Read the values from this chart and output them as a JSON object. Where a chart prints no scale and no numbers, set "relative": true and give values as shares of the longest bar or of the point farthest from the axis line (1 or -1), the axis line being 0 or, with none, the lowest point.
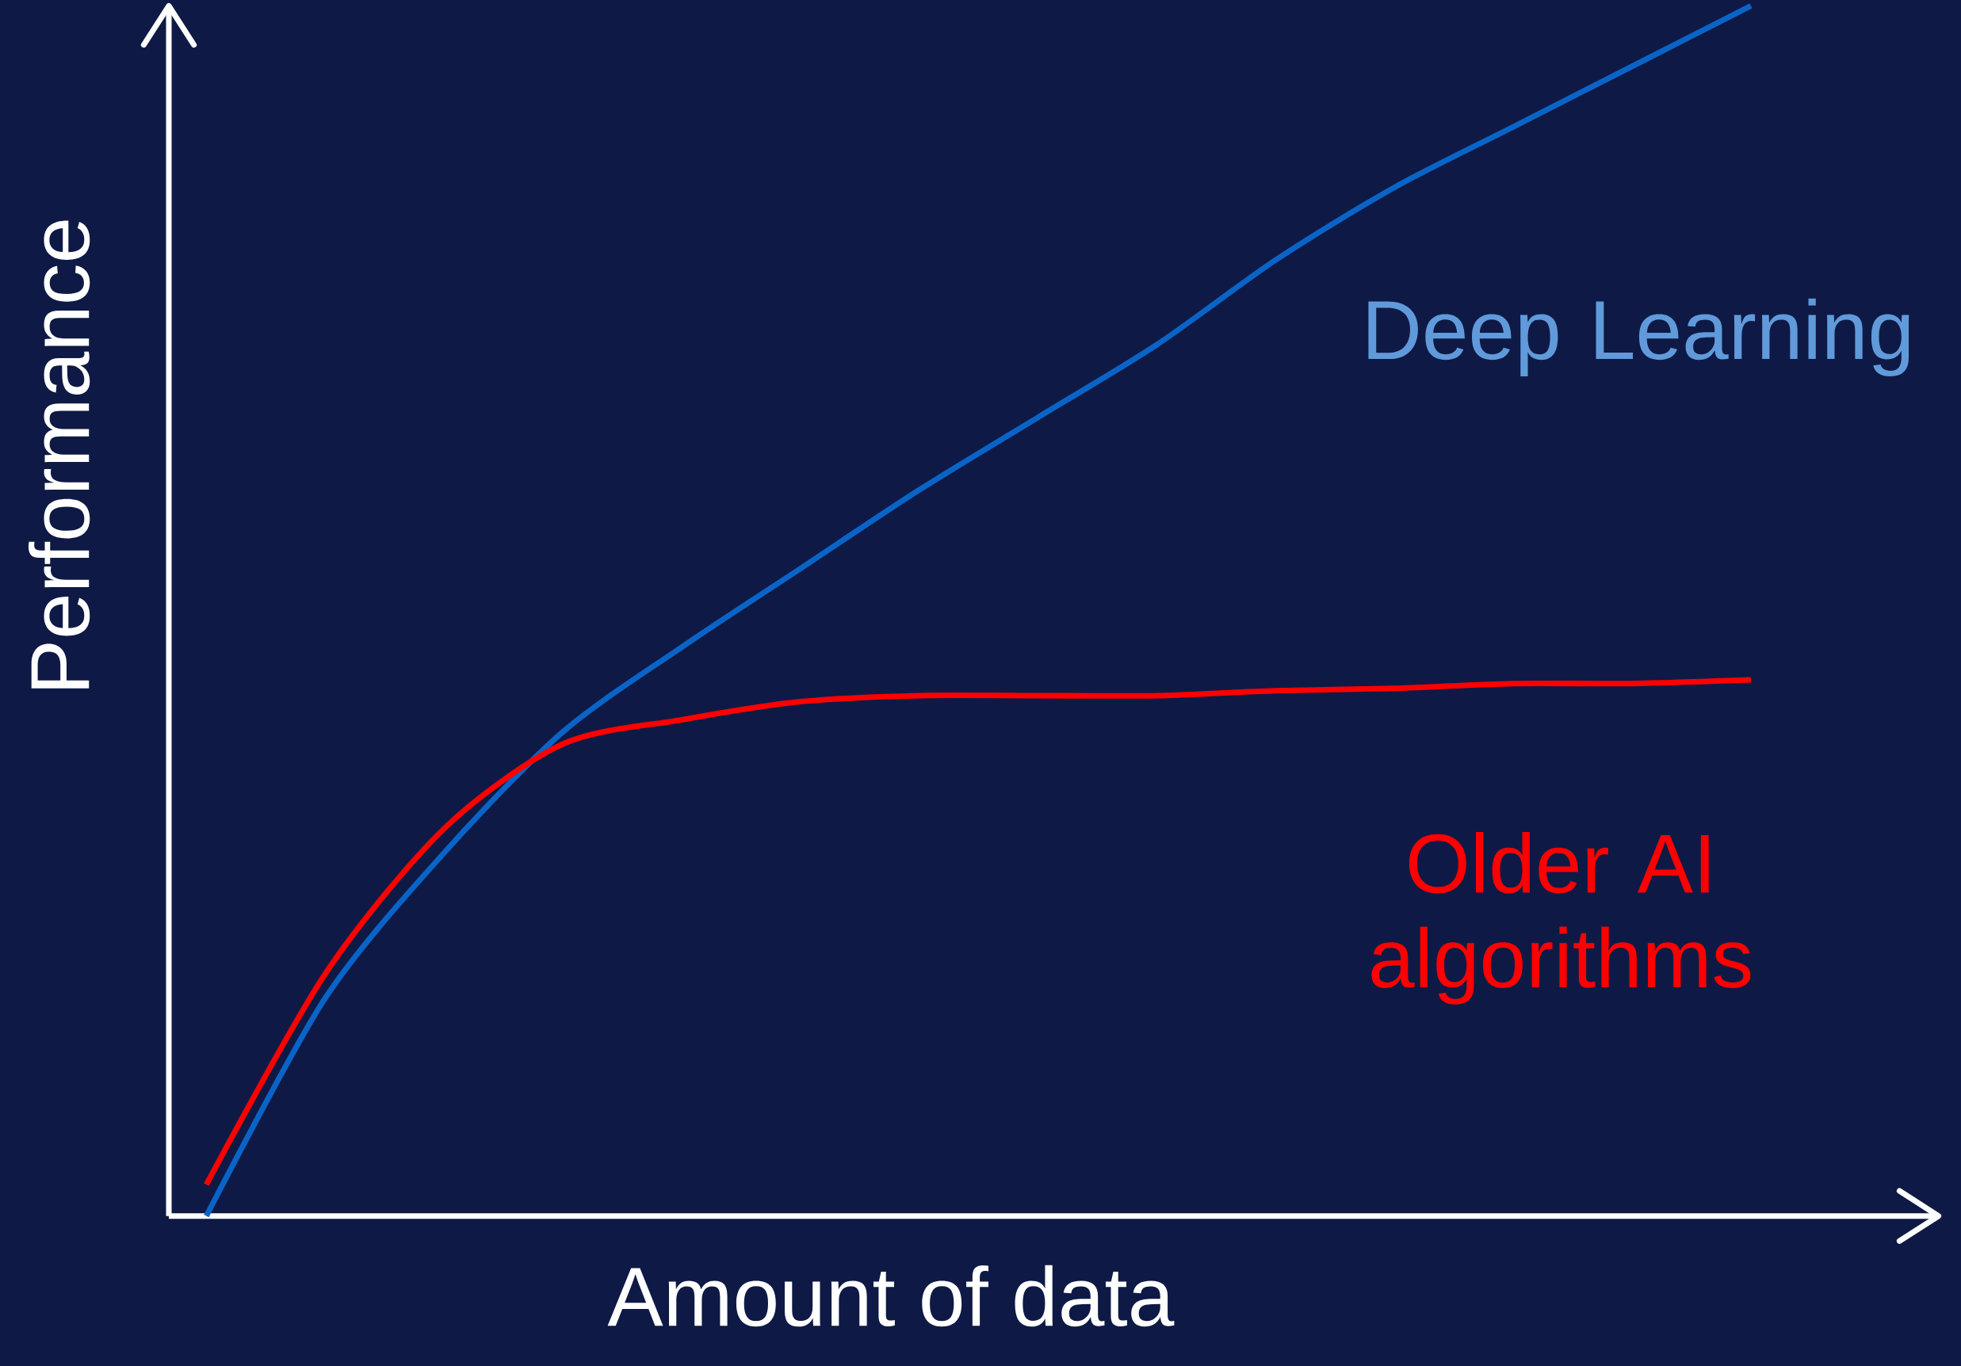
{
  "chart_data": {
    "type": "line",
    "relative": true,
    "xlabel": "Amount of data",
    "ylabel": "Performance",
    "categories": [
      null,
      null,
      null,
      null,
      null,
      null,
      null,
      null,
      null,
      null,
      null,
      null,
      null,
      null
    ],
    "series": [
      {
        "name": "Deep Learning",
        "color": "#0a64c8",
        "values": [
          0,
          0.18,
          0.3,
          0.4,
          0.47,
          0.535,
          0.6,
          0.66,
          0.72,
          0.79,
          0.85,
          0.9,
          0.95,
          1.0
        ]
      },
      {
        "name": "Older AI algorithms",
        "color": "#ff0000",
        "values": [
          0.026,
          0.2,
          0.32,
          0.39,
          0.41,
          0.425,
          0.43,
          0.43,
          0.43,
          0.434,
          0.436,
          0.44,
          0.44,
          0.443
        ]
      }
    ]
  }
}
